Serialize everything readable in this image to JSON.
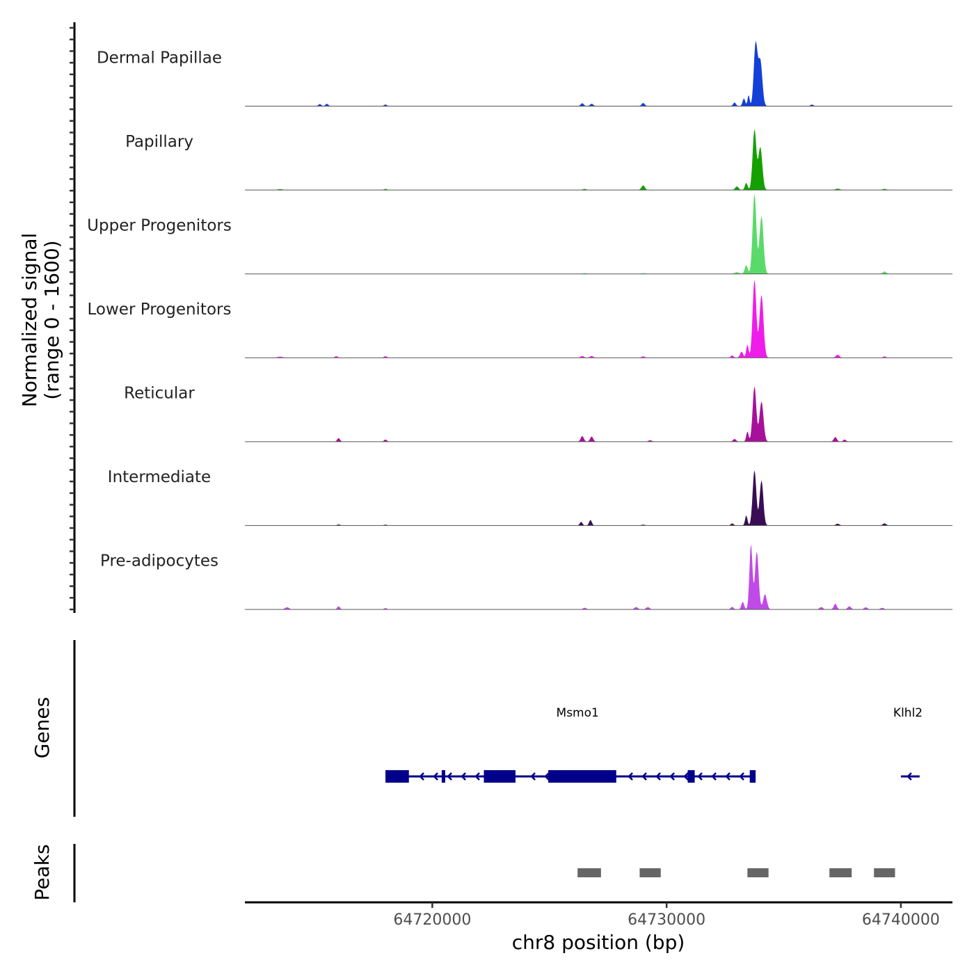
{
  "chart_data": {
    "type": "area",
    "title": "",
    "xlabel": "chr8 position (bp)",
    "ylabel": "Normalized signal\n(range 0 - 1600)",
    "ylim": [
      0,
      1600
    ],
    "xlim": [
      64712000,
      64742200
    ],
    "x_ticks": [
      64720000,
      64730000,
      64740000
    ],
    "x_tick_labels": [
      "64720000",
      "64730000",
      "64740000"
    ],
    "tracks": [
      {
        "name": "Dermal Papillae",
        "color": "#1440d8",
        "peaks": [
          [
            64715200,
            40,
            80
          ],
          [
            64715500,
            45,
            80
          ],
          [
            64718000,
            30,
            80
          ],
          [
            64726400,
            55,
            90
          ],
          [
            64726800,
            45,
            90
          ],
          [
            64729000,
            60,
            90
          ],
          [
            64732900,
            70,
            80
          ],
          [
            64733300,
            150,
            80
          ],
          [
            64733500,
            220,
            60
          ],
          [
            64733800,
            1240,
            110
          ],
          [
            64734000,
            900,
            120
          ],
          [
            64736200,
            30,
            80
          ]
        ]
      },
      {
        "name": "Papillary",
        "color": "#13a000",
        "peaks": [
          [
            64713500,
            15,
            150
          ],
          [
            64718000,
            20,
            80
          ],
          [
            64726500,
            20,
            100
          ],
          [
            64729000,
            90,
            100
          ],
          [
            64733000,
            70,
            100
          ],
          [
            64733400,
            140,
            80
          ],
          [
            64733750,
            1200,
            110
          ],
          [
            64734000,
            850,
            120
          ],
          [
            64737300,
            25,
            120
          ],
          [
            64739300,
            20,
            100
          ]
        ]
      },
      {
        "name": "Upper Progenitors",
        "color": "#5ada6a",
        "peaks": [
          [
            64726500,
            12,
            100
          ],
          [
            64729000,
            12,
            100
          ],
          [
            64733000,
            30,
            120
          ],
          [
            64733400,
            170,
            90
          ],
          [
            64733750,
            1600,
            110
          ],
          [
            64734050,
            1150,
            120
          ],
          [
            64739300,
            45,
            100
          ]
        ]
      },
      {
        "name": "Lower Progenitors",
        "color": "#f01cea",
        "peaks": [
          [
            64713500,
            20,
            150
          ],
          [
            64715900,
            30,
            80
          ],
          [
            64718000,
            30,
            80
          ],
          [
            64726400,
            35,
            90
          ],
          [
            64726800,
            35,
            90
          ],
          [
            64729000,
            25,
            100
          ],
          [
            64732800,
            45,
            80
          ],
          [
            64733200,
            120,
            90
          ],
          [
            64733450,
            260,
            70
          ],
          [
            64733750,
            1550,
            110
          ],
          [
            64734050,
            1250,
            120
          ],
          [
            64737300,
            60,
            100
          ],
          [
            64739300,
            25,
            80
          ]
        ]
      },
      {
        "name": "Reticular",
        "color": "#a8109b",
        "peaks": [
          [
            64716000,
            70,
            80
          ],
          [
            64718000,
            40,
            80
          ],
          [
            64726400,
            110,
            90
          ],
          [
            64726800,
            100,
            90
          ],
          [
            64729300,
            25,
            100
          ],
          [
            64732900,
            50,
            90
          ],
          [
            64733450,
            200,
            70
          ],
          [
            64733750,
            1100,
            110
          ],
          [
            64734050,
            800,
            120
          ],
          [
            64737200,
            90,
            90
          ],
          [
            64737600,
            40,
            80
          ]
        ]
      },
      {
        "name": "Intermediate",
        "color": "#3a0d55",
        "peaks": [
          [
            64716000,
            20,
            80
          ],
          [
            64718000,
            15,
            80
          ],
          [
            64726350,
            70,
            80
          ],
          [
            64726750,
            110,
            80
          ],
          [
            64729000,
            15,
            100
          ],
          [
            64732800,
            40,
            80
          ],
          [
            64733400,
            200,
            70
          ],
          [
            64733750,
            1100,
            110
          ],
          [
            64734050,
            900,
            110
          ],
          [
            64737300,
            35,
            100
          ],
          [
            64739300,
            40,
            100
          ]
        ]
      },
      {
        "name": "Pre-adipocytes",
        "color": "#c04ae8",
        "peaks": [
          [
            64713800,
            40,
            120
          ],
          [
            64716000,
            60,
            80
          ],
          [
            64718000,
            25,
            80
          ],
          [
            64726500,
            30,
            100
          ],
          [
            64728700,
            45,
            100
          ],
          [
            64729200,
            45,
            100
          ],
          [
            64732800,
            50,
            80
          ],
          [
            64733250,
            150,
            80
          ],
          [
            64733600,
            1300,
            90
          ],
          [
            64733850,
            1150,
            110
          ],
          [
            64734200,
            300,
            110
          ],
          [
            64736600,
            45,
            100
          ],
          [
            64737200,
            110,
            90
          ],
          [
            64737800,
            60,
            100
          ],
          [
            64738500,
            40,
            100
          ],
          [
            64739200,
            30,
            100
          ]
        ]
      }
    ],
    "genes": {
      "title": "Genes",
      "color": "#00008b",
      "labels": [
        {
          "text": "Msmo1",
          "x": 64726200
        },
        {
          "text": "Klhl2",
          "x": 64740300
        }
      ],
      "transcripts": [
        {
          "name": "Msmo1",
          "start": 64718000,
          "end": 64733800,
          "strand": "-",
          "exons": [
            [
              64718000,
              64719000
            ],
            [
              64720400,
              64720550
            ],
            [
              64722200,
              64723550
            ],
            [
              64724950,
              64727850
            ],
            [
              64730900,
              64731200
            ],
            [
              64733550,
              64733800
            ]
          ]
        },
        {
          "name": "Klhl2",
          "start": 64740000,
          "end": 64740800,
          "strand": "-",
          "exons": []
        }
      ]
    },
    "peaks_track": {
      "title": "Peaks",
      "color": "#666666",
      "regions": [
        [
          64726200,
          64727200
        ],
        [
          64728850,
          64729750
        ],
        [
          64733450,
          64734350
        ],
        [
          64736950,
          64737900
        ],
        [
          64738850,
          64739750
        ]
      ]
    }
  }
}
